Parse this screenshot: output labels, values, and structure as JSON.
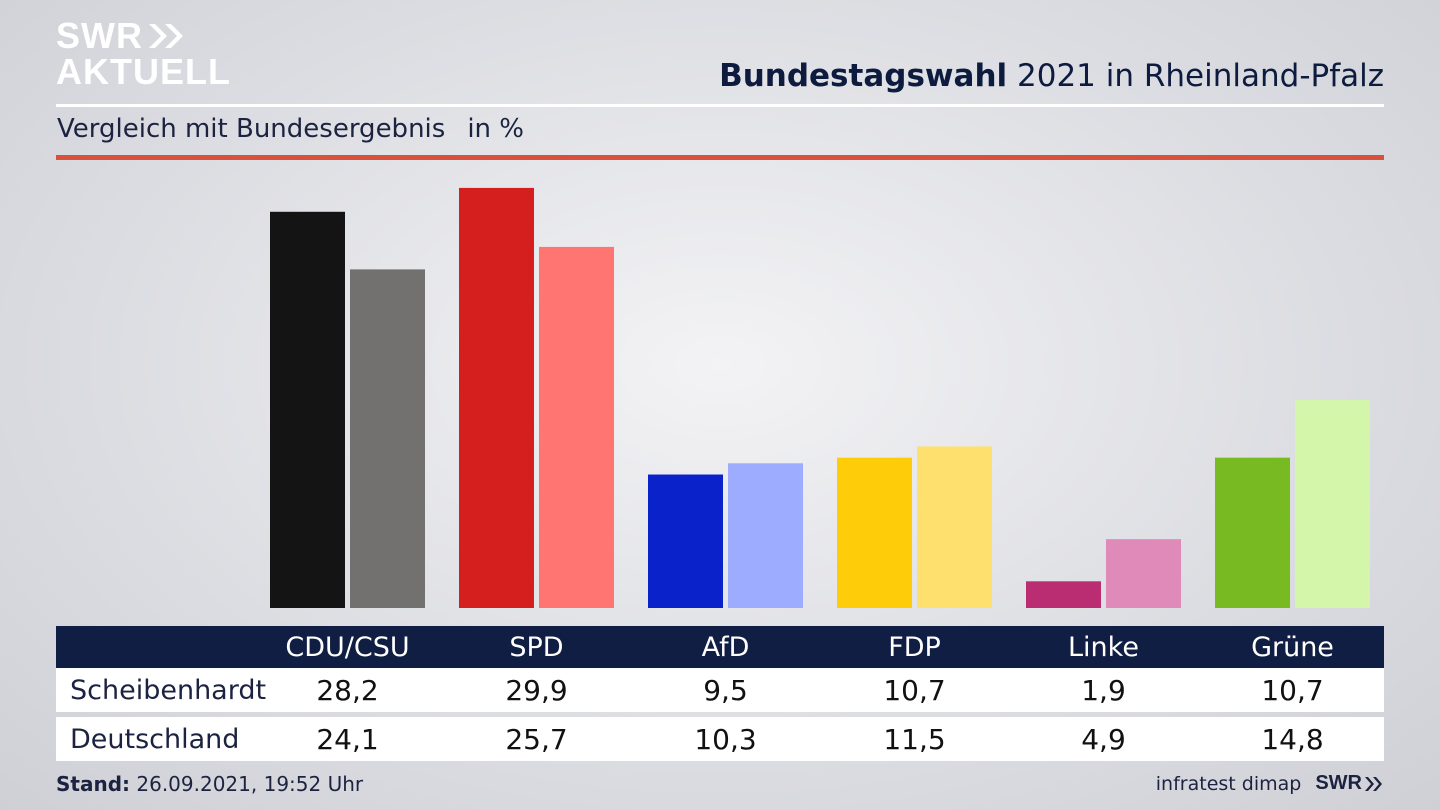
{
  "brand": {
    "logo_top": "SWR",
    "logo_bottom": "AKTUELL",
    "footer_logo": "SWR"
  },
  "header": {
    "title_bold": "Bundestagswahl",
    "title_rest": " 2021 in Rheinland-Pfalz",
    "subtitle": "Vergleich mit Bundesergebnis",
    "unit": "in %"
  },
  "footer": {
    "stand_label": "Stand:",
    "stand_value": " 26.09.2021, 19:52 Uhr",
    "source": "infratest dimap"
  },
  "chart_data": {
    "type": "bar",
    "title": "Bundestagswahl 2021 in Rheinland-Pfalz",
    "subtitle": "Vergleich mit Bundesergebnis in %",
    "categories": [
      "CDU/CSU",
      "SPD",
      "AfD",
      "FDP",
      "Linke",
      "Grüne"
    ],
    "series": [
      {
        "name": "Scheibenhardt",
        "values": [
          28.2,
          29.9,
          9.5,
          10.7,
          1.9,
          10.7
        ]
      },
      {
        "name": "Deutschland",
        "values": [
          24.1,
          25.7,
          10.3,
          11.5,
          4.9,
          14.8
        ]
      }
    ],
    "colors": {
      "Scheibenhardt": [
        "#141414",
        "#d51e1e",
        "#0a22c9",
        "#ffcc0a",
        "#bb2d72",
        "#78ba21"
      ],
      "Deutschland": [
        "#727170",
        "#fe7571",
        "#9dacfe",
        "#fee06f",
        "#e08ab9",
        "#d4f6aa"
      ]
    },
    "ylim": [
      0,
      30
    ]
  }
}
